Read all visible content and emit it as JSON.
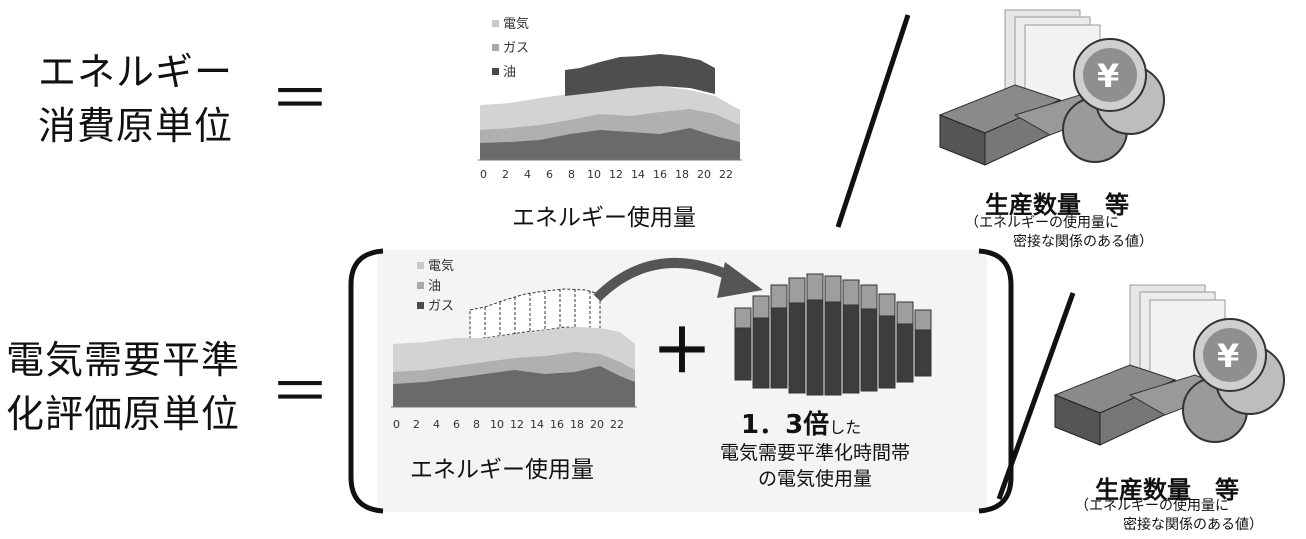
{
  "top": {
    "left_label_line1": "エネルギー",
    "left_label_line2": "消費原単位",
    "equals": "＝",
    "chart_caption": "エネルギー使用量",
    "legend": [
      "電気",
      "ガス",
      "油"
    ],
    "product_title": "生産数量　等",
    "product_note_line1": "（エネルギーの使用量に",
    "product_note_line2": "密接な関係のある値）"
  },
  "bottom": {
    "left_label_line1": "電気需要平準",
    "left_label_line2": "化評価原単位",
    "equals": "＝",
    "chart_caption": "エネルギー使用量",
    "legend": [
      "電気",
      "油",
      "ガス"
    ],
    "plus": "＋",
    "multiplier_big": "1．3倍",
    "multiplier_small": "した",
    "period_caption_line1": "電気需要平準化時間帯",
    "period_caption_line2": "の電気使用量",
    "product_title": "生産数量　等",
    "product_note_line1": "（エネルギーの使用量に",
    "product_note_line2": "密接な関係のある値）"
  },
  "colors": {
    "electric": "#bdbdbd",
    "gas": "#a6a6a6",
    "oil": "#595959",
    "bracket": "#111111",
    "panel": "#f2f2f2"
  },
  "chart_data": [
    {
      "type": "area",
      "x_ticks": [
        "0",
        "2",
        "4",
        "6",
        "8",
        "10",
        "12",
        "14",
        "16",
        "18",
        "20",
        "22"
      ],
      "legend": [
        "電気",
        "ガス",
        "油"
      ]
    },
    {
      "type": "area",
      "x_ticks": [
        "0",
        "2",
        "4",
        "6",
        "8",
        "10",
        "12",
        "14",
        "16",
        "18",
        "20",
        "22"
      ],
      "legend": [
        "電気",
        "油",
        "ガス"
      ]
    }
  ]
}
